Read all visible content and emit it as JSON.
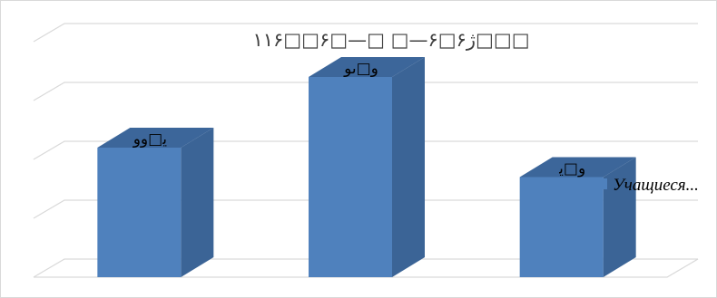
{
  "chart_data": {
    "type": "bar",
    "title": "۱۱۶□□۶□—□ □—۶□ژ۶□□□",
    "categories": [
      "",
      "",
      ""
    ],
    "series": [
      {
        "name": "Учащиеся...",
        "values": [
          2.2,
          3.4,
          1.7
        ],
        "data_labels": [
          "ﻳ□وو",
          "و□ىو",
          "و□ﻳ"
        ]
      }
    ],
    "ylim": [
      0,
      4
    ],
    "grid": true,
    "legend_position": "right",
    "colors": {
      "bar_front": "#4f81bd",
      "bar_side": "#3b6496",
      "bar_top": "#3c669a",
      "gridline": "#d9d9d9",
      "legend_swatch": "#4f81bd"
    }
  }
}
